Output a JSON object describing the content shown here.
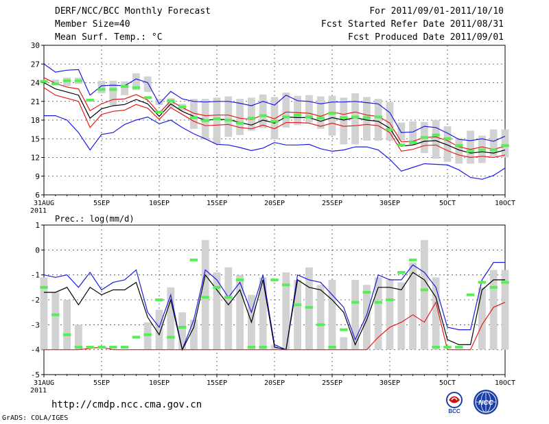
{
  "header": {
    "title": "DERF/NCC/BCC Monthly Forecast",
    "member": "Member Size=40",
    "variable": "Mean Surf. Temp.: °C",
    "period": "For 2011/09/01-2011/10/10",
    "started": "Fcst Started Refer Date 2011/08/31",
    "produced": "Fcst Produced Date 2011/09/01"
  },
  "footer": {
    "url": "http://cmdp.ncc.cma.gov.cn",
    "grads": "GrADS: COLA/IGES",
    "logo1_text": "BCC",
    "logo2_text": "NCC"
  },
  "colors": {
    "blue": "#1a1ae6",
    "red": "#e61a1a",
    "black": "#000000",
    "bar": "#d2d2d2",
    "green": "#55ee55"
  },
  "chart_data": [
    {
      "type": "line",
      "title": "Mean Surf. Temp.: °C",
      "ylim": [
        6,
        30
      ],
      "yticks": [
        6,
        9,
        12,
        15,
        18,
        21,
        24,
        27,
        30
      ],
      "x_tick_labels": [
        "31AUG",
        "5SEP",
        "10SEP",
        "15SEP",
        "20SEP",
        "25SEP",
        "30SEP",
        "5OCT",
        "10OCT"
      ],
      "x_tick_days": [
        0,
        5,
        10,
        15,
        20,
        25,
        30,
        35,
        40
      ],
      "x_year_label": "2011",
      "series": [
        {
          "name": "max",
          "color": "blue",
          "values": [
            27.0,
            25.7,
            26.0,
            26.1,
            22.0,
            23.5,
            23.6,
            23.5,
            24.6,
            24.0,
            20.6,
            22.6,
            21.4,
            21.0,
            20.9,
            21.0,
            21.0,
            20.7,
            20.3,
            21.0,
            20.4,
            22.0,
            21.1,
            21.0,
            20.6,
            20.9,
            20.9,
            21.0,
            20.8,
            20.6,
            19.2,
            16.0,
            16.1,
            17.0,
            16.8,
            15.9,
            14.9,
            14.7,
            15.0,
            14.6,
            15.4
          ]
        },
        {
          "name": "upper",
          "color": "red",
          "values": [
            24.8,
            23.9,
            23.3,
            23.0,
            19.5,
            20.6,
            21.3,
            21.4,
            22.1,
            21.2,
            19.1,
            21.1,
            20.0,
            19.1,
            18.7,
            18.8,
            18.8,
            18.3,
            18.1,
            18.8,
            18.2,
            19.3,
            19.2,
            19.1,
            18.6,
            19.3,
            18.9,
            19.3,
            18.8,
            18.6,
            17.5,
            14.5,
            14.6,
            15.2,
            15.3,
            14.7,
            13.7,
            13.3,
            13.7,
            13.3,
            13.8
          ]
        },
        {
          "name": "mean",
          "color": "black",
          "values": [
            24.0,
            23.0,
            22.5,
            22.0,
            18.3,
            19.8,
            20.3,
            20.5,
            21.3,
            20.6,
            18.6,
            20.6,
            19.4,
            18.6,
            18.0,
            18.1,
            18.1,
            17.6,
            17.2,
            18.0,
            17.5,
            18.5,
            18.4,
            18.4,
            17.8,
            18.4,
            18.0,
            18.4,
            18.0,
            17.8,
            16.7,
            13.8,
            14.0,
            14.6,
            14.7,
            14.0,
            13.2,
            12.7,
            12.9,
            12.7,
            13.2
          ]
        },
        {
          "name": "lower",
          "color": "red",
          "values": [
            23.2,
            22.0,
            21.5,
            21.0,
            16.8,
            18.9,
            19.4,
            19.6,
            20.5,
            19.9,
            18.1,
            20.0,
            18.9,
            17.8,
            17.1,
            17.2,
            17.3,
            16.8,
            16.6,
            17.2,
            16.6,
            17.6,
            17.6,
            17.5,
            17.0,
            17.5,
            17.0,
            17.1,
            17.3,
            17.1,
            16.0,
            13.0,
            13.3,
            13.9,
            14.0,
            13.1,
            12.4,
            12.0,
            12.2,
            12.0,
            12.4
          ]
        },
        {
          "name": "min",
          "color": "blue",
          "values": [
            18.7,
            18.7,
            18.0,
            16.0,
            13.2,
            15.7,
            16.0,
            17.3,
            18.0,
            18.5,
            17.4,
            18.0,
            16.8,
            15.8,
            15.0,
            14.1,
            14.0,
            13.6,
            13.1,
            13.5,
            14.4,
            14.0,
            14.0,
            14.1,
            13.4,
            13.0,
            13.2,
            13.7,
            13.7,
            13.2,
            11.7,
            9.8,
            10.4,
            11.0,
            10.9,
            10.8,
            10.0,
            8.8,
            8.5,
            9.1,
            10.3
          ]
        }
      ],
      "bars_low": [
        null,
        23.8,
        23.5,
        23.8,
        null,
        22.3,
        20.4,
        22.0,
        22.8,
        22.5,
        20.4,
        20.0,
        19.5,
        16.6,
        14.9,
        14.2,
        15.3,
        15.6,
        16.3,
        16.7,
        14.9,
        16.8,
        17.2,
        17.6,
        16.6,
        15.5,
        14.1,
        14.1,
        14.7,
        14.7,
        14.7,
        14.7,
        14.0,
        12.7,
        11.8,
        11.3,
        11.0,
        11.0,
        11.1,
        12.2,
        12.0
      ],
      "bars_high": [
        null,
        24.5,
        24.8,
        24.8,
        null,
        24.3,
        24.3,
        24.2,
        25.5,
        25.0,
        21.4,
        21.5,
        20.6,
        21.4,
        21.4,
        21.6,
        21.8,
        21.4,
        21.6,
        22.1,
        21.7,
        22.4,
        21.9,
        22.0,
        21.8,
        21.9,
        21.6,
        22.3,
        21.7,
        21.4,
        20.9,
        17.6,
        17.8,
        17.7,
        18.0,
        17.0,
        15.1,
        16.3,
        15.5,
        16.5,
        16.5
      ],
      "obs": [
        24.2,
        23.8,
        24.3,
        24.3,
        21.2,
        22.9,
        22.9,
        23.4,
        23.2,
        21.6,
        19.3,
        21.1,
        20.1,
        18.4,
        17.9,
        18.2,
        18.0,
        17.5,
        18.3,
        18.7,
        17.8,
        18.5,
        18.8,
        18.5,
        18.3,
        19.1,
        18.4,
        18.5,
        18.4,
        18.5,
        16.5,
        14.0,
        14.4,
        15.2,
        15.6,
        15.0,
        13.9,
        13.0,
        13.2,
        13.2,
        13.9
      ]
    },
    {
      "type": "line",
      "title": "Prec.: log(mm/d)",
      "ylim": [
        -5,
        1
      ],
      "yticks": [
        -5,
        -4,
        -3,
        -2,
        -1,
        0,
        1
      ],
      "x_tick_labels": [
        "31AUG",
        "5SEP",
        "10SEP",
        "15SEP",
        "20SEP",
        "25SEP",
        "30SEP",
        "5OCT",
        "10OCT"
      ],
      "x_tick_days": [
        0,
        5,
        10,
        15,
        20,
        25,
        30,
        35,
        40
      ],
      "x_year_label": "2011",
      "series": [
        {
          "name": "max",
          "color": "blue",
          "values": [
            -1.0,
            -1.1,
            -1.0,
            -1.5,
            -0.9,
            -1.6,
            -1.3,
            -1.2,
            -0.8,
            -2.5,
            -3.1,
            -1.8,
            -4.0,
            -2.8,
            -0.8,
            -1.2,
            -1.9,
            -1.3,
            -2.5,
            -1.0,
            -3.8,
            -4.0,
            -1.0,
            -1.2,
            -1.3,
            -1.8,
            -2.3,
            -3.6,
            -2.6,
            -1.0,
            -1.2,
            -1.2,
            -0.6,
            -0.9,
            -1.5,
            -3.1,
            -3.2,
            -3.2,
            -1.2,
            -0.5,
            -0.5
          ]
        },
        {
          "name": "mean",
          "color": "black",
          "values": [
            -1.7,
            -1.7,
            -1.5,
            -2.2,
            -1.5,
            -1.8,
            -1.6,
            -1.6,
            -1.3,
            -2.7,
            -3.4,
            -2.0,
            -4.0,
            -3.1,
            -1.0,
            -1.6,
            -2.2,
            -1.6,
            -2.9,
            -1.2,
            -3.9,
            -4.0,
            -1.2,
            -1.5,
            -1.6,
            -2.0,
            -2.5,
            -3.8,
            -2.8,
            -1.5,
            -1.5,
            -1.6,
            -0.9,
            -1.2,
            -1.9,
            -3.6,
            -3.8,
            -3.8,
            -1.6,
            -1.2,
            -1.2
          ]
        },
        {
          "name": "lower",
          "color": "red",
          "values": [
            -4.0,
            -4.0,
            -4.0,
            -4.0,
            -3.95,
            -3.9,
            -4.0,
            -4.0,
            -4.0,
            -4.0,
            -4.0,
            -4.0,
            -4.0,
            -4.0,
            -4.0,
            -4.0,
            -4.0,
            -4.0,
            -4.0,
            -4.0,
            -4.0,
            -4.0,
            -4.0,
            -4.0,
            -4.0,
            -4.0,
            -4.0,
            -4.0,
            -4.0,
            -3.5,
            -3.1,
            -2.9,
            -2.6,
            -2.9,
            -2.1,
            -4.0,
            -4.0,
            -4.0,
            -3.0,
            -2.3,
            -2.1
          ]
        }
      ],
      "bars_low": [
        -4,
        -4,
        -4,
        -4,
        null,
        null,
        null,
        null,
        null,
        -4,
        -4,
        -4,
        -4,
        -4,
        -4,
        -4,
        -4,
        -4,
        -4,
        -4,
        -4,
        -4,
        -4,
        -4,
        -4,
        -4,
        -4,
        -4,
        -4,
        -4,
        -4,
        -4,
        -4,
        -4,
        -4,
        null,
        null,
        null,
        -4,
        -4,
        -4
      ],
      "bars_high": [
        -1.1,
        -1.7,
        -2.0,
        -3.0,
        null,
        null,
        null,
        null,
        null,
        -2.9,
        -2.4,
        -1.5,
        -2.5,
        -2.8,
        0.4,
        -0.9,
        -0.7,
        -1.0,
        -1.8,
        -1.1,
        -3.8,
        -0.9,
        -1.2,
        -0.7,
        -1.4,
        -1.2,
        -3.5,
        -1.2,
        -1.4,
        -1.1,
        -1.2,
        -1.3,
        -0.5,
        0.4,
        -1.1,
        null,
        null,
        null,
        -1.5,
        -0.8,
        -0.8
      ],
      "obs": [
        -1.5,
        -2.6,
        -3.4,
        -3.9,
        -3.9,
        -3.9,
        -3.9,
        -3.9,
        -3.5,
        -3.4,
        -2.0,
        -3.5,
        -3.1,
        -0.4,
        -1.9,
        -1.5,
        -1.9,
        -1.2,
        -3.9,
        -3.9,
        -1.2,
        -1.4,
        -2.2,
        -2.3,
        -3.0,
        -3.9,
        -3.2,
        -2.1,
        -1.7,
        -2.1,
        -2.0,
        -0.9,
        -0.4,
        -1.6,
        -3.9,
        -3.9,
        -3.9,
        -1.8,
        -1.3,
        -1.5,
        -1.3
      ]
    }
  ]
}
